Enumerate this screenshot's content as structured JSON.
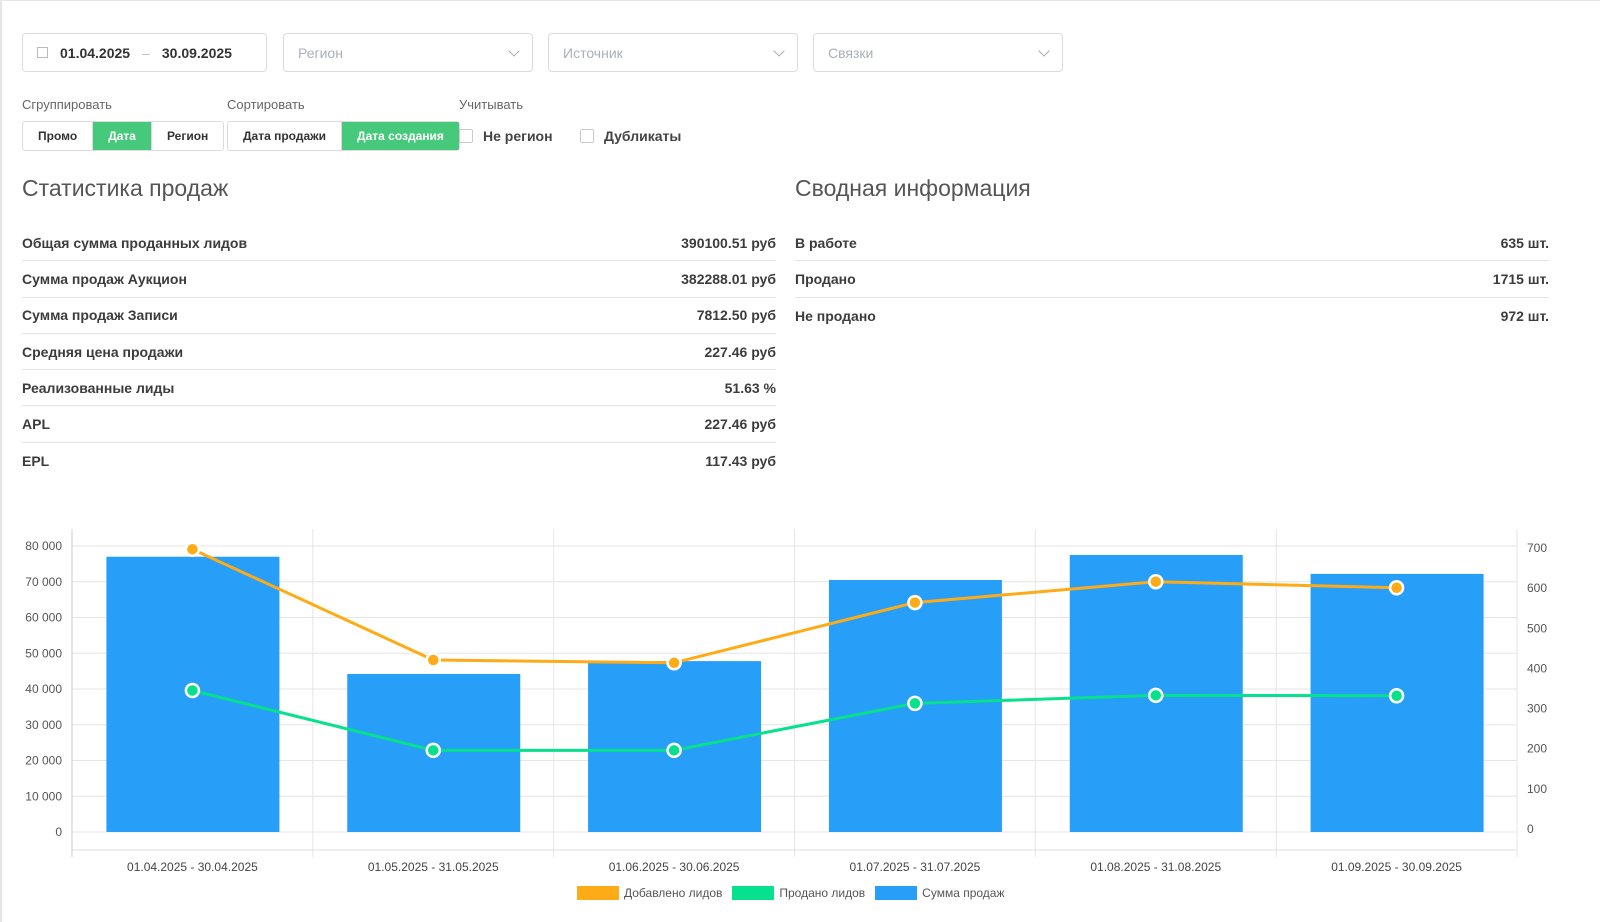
{
  "filters": {
    "date_from": "01.04.2025",
    "date_sep": "–",
    "date_to": "30.09.2025",
    "region_placeholder": "Регион",
    "source_placeholder": "Источник",
    "links_placeholder": "Связки"
  },
  "group": {
    "label": "Сгруппировать",
    "options": [
      "Промо",
      "Дата",
      "Регион"
    ],
    "active": "Дата"
  },
  "sort": {
    "label": "Сортировать",
    "options": [
      "Дата продажи",
      "Дата создания"
    ],
    "active": "Дата создания"
  },
  "consider": {
    "label": "Учитывать",
    "options": [
      {
        "label": "Не регион",
        "checked": false
      },
      {
        "label": "Дубликаты",
        "checked": false
      }
    ]
  },
  "sales": {
    "title": "Статистика продаж",
    "rows": [
      {
        "label": "Общая сумма проданных лидов",
        "value": "390100.51 руб"
      },
      {
        "label": "Сумма продаж Аукцион",
        "value": "382288.01 руб"
      },
      {
        "label": "Сумма продаж Записи",
        "value": "7812.50 руб"
      },
      {
        "label": "Средняя цена продажи",
        "value": "227.46 руб"
      },
      {
        "label": "Реализованные лиды",
        "value": "51.63 %"
      },
      {
        "label": "APL",
        "value": "227.46 руб"
      },
      {
        "label": "EPL",
        "value": "117.43 руб"
      }
    ]
  },
  "summary": {
    "title": "Сводная информация",
    "rows": [
      {
        "label": "В работе",
        "value": "635 шт."
      },
      {
        "label": "Продано",
        "value": "1715 шт."
      },
      {
        "label": "Не продано",
        "value": "972 шт."
      }
    ]
  },
  "chart_data": {
    "type": "bar",
    "categories": [
      "01.04.2025 - 30.04.2025",
      "01.05.2025 - 31.05.2025",
      "01.06.2025 - 30.06.2025",
      "01.07.2025 - 31.07.2025",
      "01.08.2025 - 31.08.2025",
      "01.09.2025 - 30.09.2025"
    ],
    "left_axis": {
      "ylim": [
        0,
        80000
      ],
      "ticks": [
        "0",
        "10 000",
        "20 000",
        "30 000",
        "40 000",
        "50 000",
        "60 000",
        "70 000",
        "80 000"
      ]
    },
    "right_axis": {
      "ylim": [
        0,
        700
      ],
      "ticks": [
        "0",
        "100",
        "200",
        "300",
        "400",
        "500",
        "600",
        "700"
      ]
    },
    "series": [
      {
        "name": "Добавлено лидов",
        "type": "line",
        "axis": "right",
        "color": "#fdab17",
        "values": [
          697,
          421,
          414,
          564,
          616,
          601
        ]
      },
      {
        "name": "Продано лидов",
        "type": "line",
        "axis": "right",
        "color": "#07e08c",
        "values": [
          345,
          196,
          196,
          313,
          333,
          332
        ]
      },
      {
        "name": "Сумма продаж",
        "type": "bar",
        "axis": "left",
        "color": "#279ef8",
        "values": [
          77000,
          44200,
          47800,
          70500,
          77500,
          72200
        ]
      }
    ],
    "legend": "bottom"
  }
}
